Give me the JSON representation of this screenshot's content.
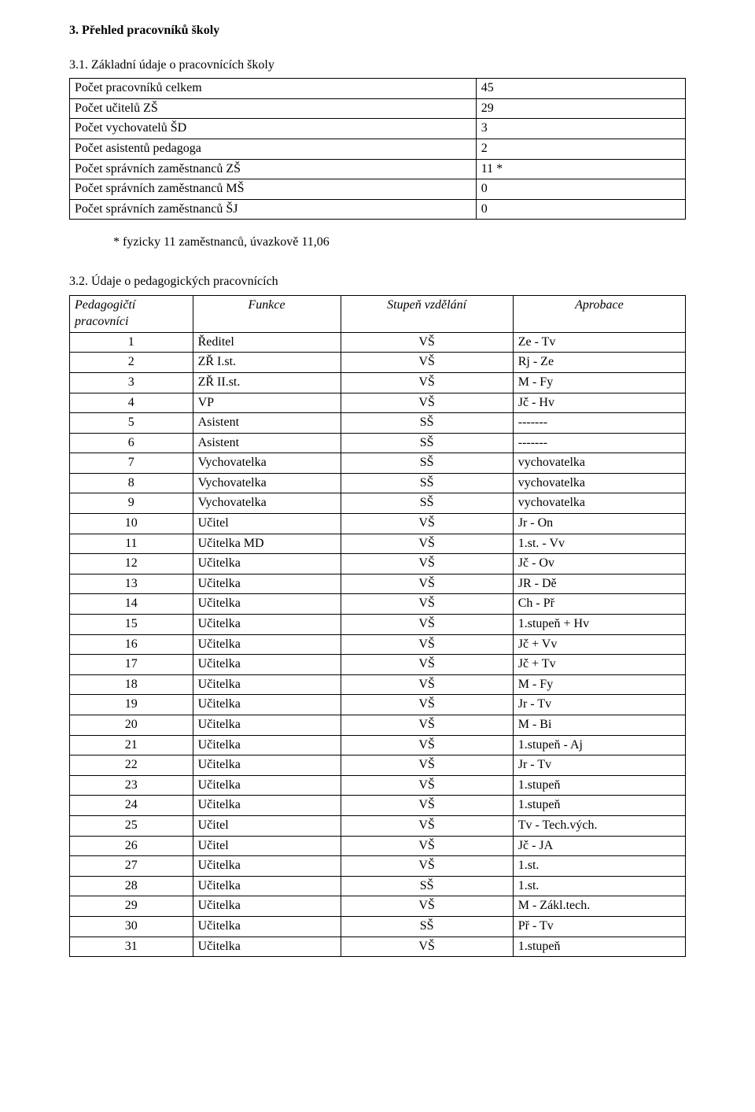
{
  "section_heading": "3.  Přehled pracovníků školy",
  "sub1_heading": "3.1. Základní údaje o pracovnících školy",
  "t1": {
    "col_widths": [
      "66%",
      "34%"
    ],
    "rows": [
      {
        "label": "Počet pracovníků celkem",
        "value": "45"
      },
      {
        "label": "Počet učitelů ZŠ",
        "value": "29"
      },
      {
        "label": "Počet vychovatelů ŠD",
        "value": "3"
      },
      {
        "label": "Počet asistentů pedagoga",
        "value": "2"
      },
      {
        "label": "Počet správních zaměstnanců ZŠ",
        "value": "11 *"
      },
      {
        "label": "Počet správních zaměstnanců MŠ",
        "value": "0"
      },
      {
        "label": "Počet správních zaměstnanců ŠJ",
        "value": "0"
      }
    ]
  },
  "note": "*  fyzicky 11 zaměstnanců, úvazkově 11,06",
  "sub2_heading": "3.2. Údaje o pedagogických pracovnících",
  "t2": {
    "headers": {
      "ped": "Pedagogičtí pracovníci",
      "func": "Funkce",
      "vzd": "Stupeň vzdělání",
      "apr": "Aprobace"
    },
    "rows": [
      {
        "n": "1",
        "func": "Ředitel",
        "vzd": "VŠ",
        "apr": "Ze - Tv"
      },
      {
        "n": "2",
        "func": "ZŘ I.st.",
        "vzd": "VŠ",
        "apr": "Rj - Ze"
      },
      {
        "n": "3",
        "func": "ZŘ II.st.",
        "vzd": "VŠ",
        "apr": "M - Fy"
      },
      {
        "n": "4",
        "func": "VP",
        "vzd": "VŠ",
        "apr": "Jč - Hv"
      },
      {
        "n": "5",
        "func": "Asistent",
        "vzd": "SŠ",
        "apr": "-------"
      },
      {
        "n": "6",
        "func": "Asistent",
        "vzd": "SŠ",
        "apr": "-------"
      },
      {
        "n": "7",
        "func": "Vychovatelka",
        "vzd": "SŠ",
        "apr": "vychovatelka"
      },
      {
        "n": "8",
        "func": "Vychovatelka",
        "vzd": "SŠ",
        "apr": "vychovatelka"
      },
      {
        "n": "9",
        "func": "Vychovatelka",
        "vzd": "SŠ",
        "apr": "vychovatelka"
      },
      {
        "n": "10",
        "func": "Učitel",
        "vzd": "VŠ",
        "apr": "Jr - On"
      },
      {
        "n": "11",
        "func": "Učitelka   MD",
        "vzd": "VŠ",
        "apr": "1.st. - Vv"
      },
      {
        "n": "12",
        "func": "Učitelka",
        "vzd": "VŠ",
        "apr": "Jč - Ov"
      },
      {
        "n": "13",
        "func": "Učitelka",
        "vzd": "VŠ",
        "apr": "JR - Dě"
      },
      {
        "n": "14",
        "func": "Učitelka",
        "vzd": "VŠ",
        "apr": "Ch - Př"
      },
      {
        "n": "15",
        "func": "Učitelka",
        "vzd": "VŠ",
        "apr": "1.stupeň + Hv"
      },
      {
        "n": "16",
        "func": "Učitelka",
        "vzd": "VŠ",
        "apr": "Jč + Vv"
      },
      {
        "n": "17",
        "func": "Učitelka",
        "vzd": "VŠ",
        "apr": "Jč + Tv"
      },
      {
        "n": "18",
        "func": "Učitelka",
        "vzd": "VŠ",
        "apr": "M - Fy"
      },
      {
        "n": "19",
        "func": "Učitelka",
        "vzd": "VŠ",
        "apr": "Jr - Tv"
      },
      {
        "n": "20",
        "func": "Učitelka",
        "vzd": "VŠ",
        "apr": "M - Bi"
      },
      {
        "n": "21",
        "func": "Učitelka",
        "vzd": "VŠ",
        "apr": "1.stupeň - Aj"
      },
      {
        "n": "22",
        "func": "Učitelka",
        "vzd": "VŠ",
        "apr": "Jr - Tv"
      },
      {
        "n": "23",
        "func": "Učitelka",
        "vzd": "VŠ",
        "apr": "1.stupeň"
      },
      {
        "n": "24",
        "func": "Učitelka",
        "vzd": "VŠ",
        "apr": "1.stupeň"
      },
      {
        "n": "25",
        "func": "Učitel",
        "vzd": "VŠ",
        "apr": "Tv - Tech.vých."
      },
      {
        "n": "26",
        "func": "Učitel",
        "vzd": "VŠ",
        "apr": "Jč - JA"
      },
      {
        "n": "27",
        "func": "Učitelka",
        "vzd": "VŠ",
        "apr": "1.st."
      },
      {
        "n": "28",
        "func": "Učitelka",
        "vzd": "SŠ",
        "apr": "1.st."
      },
      {
        "n": "29",
        "func": "Učitelka",
        "vzd": "VŠ",
        "apr": "M - Zákl.tech."
      },
      {
        "n": "30",
        "func": "Učitelka",
        "vzd": "SŠ",
        "apr": "Př - Tv"
      },
      {
        "n": "31",
        "func": "Učitelka",
        "vzd": "VŠ",
        "apr": "1.stupeň"
      }
    ]
  },
  "colors": {
    "text": "#000000",
    "background": "#ffffff",
    "border": "#000000"
  }
}
